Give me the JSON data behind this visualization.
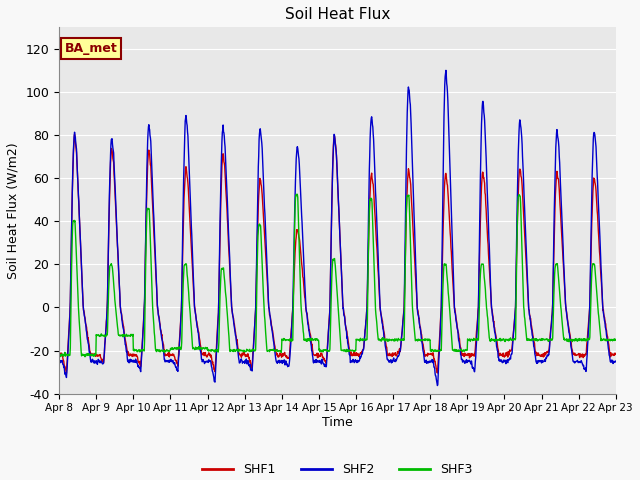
{
  "title": "Soil Heat Flux",
  "ylabel": "Soil Heat Flux (W/m2)",
  "xlabel": "Time",
  "ylim": [
    -40,
    130
  ],
  "yticks": [
    -40,
    -20,
    0,
    20,
    40,
    60,
    80,
    100,
    120
  ],
  "n_days": 15,
  "shf1_color": "#cc0000",
  "shf2_color": "#0000cc",
  "shf3_color": "#00bb00",
  "shf1_lw": 1.0,
  "shf2_lw": 1.0,
  "shf3_lw": 1.0,
  "plot_bg_color": "#e8e8e8",
  "fig_bg_color": "#f8f8f8",
  "grid_color": "#ffffff",
  "annotation_text": "BA_met",
  "legend_labels": [
    "SHF1",
    "SHF2",
    "SHF3"
  ],
  "x_tick_labels": [
    "Apr 8",
    "Apr 9",
    "Apr 10",
    "Apr 11",
    "Apr 12",
    "Apr 13",
    "Apr 14",
    "Apr 15",
    "Apr 16",
    "Apr 17",
    "Apr 18",
    "Apr 19",
    "Apr 20",
    "Apr 21",
    "Apr 22",
    "Apr 23"
  ],
  "shf1_peaks": [
    80,
    74,
    73,
    65,
    71,
    60,
    36,
    80,
    62,
    64,
    62,
    63,
    65,
    63,
    60
  ],
  "shf2_peaks": [
    81,
    79,
    85,
    89,
    84,
    83,
    75,
    80,
    89,
    103,
    110,
    96,
    87,
    82,
    82
  ],
  "shf3_peaks": [
    40,
    20,
    46,
    20,
    18,
    38,
    52,
    22,
    50,
    52,
    20,
    20,
    52,
    20,
    20
  ],
  "shf1_troughs": [
    -30,
    -26,
    -28,
    -27,
    -30,
    -28,
    -24,
    -26,
    -20,
    -20,
    -30,
    -22,
    -20,
    -20,
    -22
  ],
  "shf2_troughs": [
    -33,
    -26,
    -30,
    -30,
    -35,
    -30,
    -28,
    -28,
    -20,
    -20,
    -37,
    -30,
    -22,
    -22,
    -30
  ],
  "shf1_night": [
    -22,
    -22,
    -22,
    -22,
    -22,
    -22,
    -22,
    -22,
    -22,
    -22,
    -22,
    -22,
    -22,
    -22,
    -22
  ],
  "shf2_night": [
    -25,
    -25,
    -25,
    -25,
    -25,
    -25,
    -25,
    -25,
    -25,
    -25,
    -25,
    -25,
    -25,
    -25,
    -25
  ],
  "shf3_night": [
    -22,
    -13,
    -20,
    -19,
    -20,
    -20,
    -15,
    -20,
    -15,
    -15,
    -20,
    -15,
    -15,
    -15,
    -15
  ]
}
